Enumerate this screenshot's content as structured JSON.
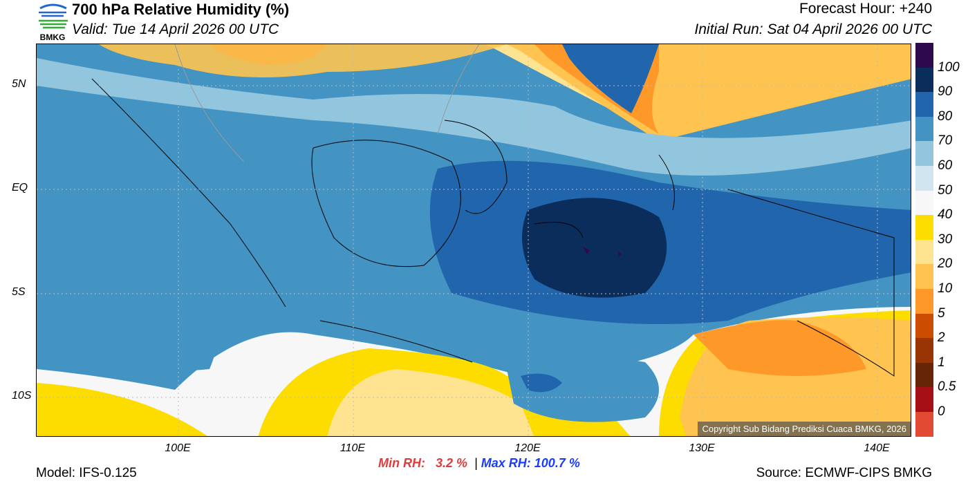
{
  "header": {
    "title": "700 hPa Relative Humidity (%)",
    "valid": "Valid: Tue 14 April 2026 00 UTC",
    "forecast_hour": "Forecast Hour: +240",
    "initial_run": "Initial Run: Sat 04 April 2026 00 UTC",
    "logo_text": "BMKG"
  },
  "map": {
    "lat_labels": [
      "5N",
      "EQ",
      "5S",
      "10S"
    ],
    "lon_labels": [
      "100E",
      "110E",
      "120E",
      "130E",
      "140E"
    ],
    "copyright": "Copyright Sub Bidang Prediksi Cuaca BMKG, 2026"
  },
  "colorbar": {
    "labels": [
      "100",
      "90",
      "80",
      "70",
      "60",
      "50",
      "40",
      "30",
      "20",
      "10",
      "5",
      "2",
      "1",
      "0.5",
      "0"
    ],
    "colors": [
      "#2d0a4e",
      "#0b2d5c",
      "#2166ac",
      "#4393c3",
      "#92c5de",
      "#d1e5f0",
      "#f7f7f7",
      "#fddc00",
      "#fee391",
      "#fec44f",
      "#fe9929",
      "#cc4c02",
      "#993404",
      "#662506",
      "#a50f15",
      "#e34a33"
    ]
  },
  "footer": {
    "model": "Model: IFS-0.125",
    "source": "Source: ECMWF-CIPS BMKG",
    "min_label": "Min RH:",
    "min_value": "3.2 %",
    "separator": "|",
    "max_label": "Max RH:",
    "max_value": "100.7 %"
  }
}
